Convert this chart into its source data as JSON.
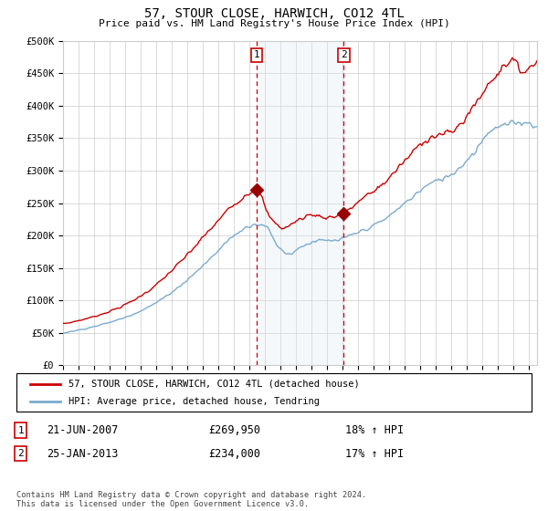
{
  "title": "57, STOUR CLOSE, HARWICH, CO12 4TL",
  "subtitle": "Price paid vs. HM Land Registry's House Price Index (HPI)",
  "ylabel_ticks": [
    "£0",
    "£50K",
    "£100K",
    "£150K",
    "£200K",
    "£250K",
    "£300K",
    "£350K",
    "£400K",
    "£450K",
    "£500K"
  ],
  "ytick_vals": [
    0,
    50000,
    100000,
    150000,
    200000,
    250000,
    300000,
    350000,
    400000,
    450000,
    500000
  ],
  "ylim": [
    0,
    500000
  ],
  "xlim_start": 1995.0,
  "xlim_end": 2025.5,
  "sale1_x": 2007.47,
  "sale1_y": 269950,
  "sale2_x": 2013.07,
  "sale2_y": 234000,
  "sale1_label": "1",
  "sale2_label": "2",
  "sale1_date": "21-JUN-2007",
  "sale1_price": "£269,950",
  "sale1_hpi": "18% ↑ HPI",
  "sale2_date": "25-JAN-2013",
  "sale2_price": "£234,000",
  "sale2_hpi": "17% ↑ HPI",
  "legend_line1": "57, STOUR CLOSE, HARWICH, CO12 4TL (detached house)",
  "legend_line2": "HPI: Average price, detached house, Tendring",
  "footnote": "Contains HM Land Registry data © Crown copyright and database right 2024.\nThis data is licensed under the Open Government Licence v3.0.",
  "line_color_red": "#cc0000",
  "line_color_blue": "#7aabcf",
  "shade_color": "#dce9f5",
  "vline_color": "#cc0000",
  "background_color": "#ffffff",
  "grid_color": "#cccccc",
  "marker_color": "#990000"
}
